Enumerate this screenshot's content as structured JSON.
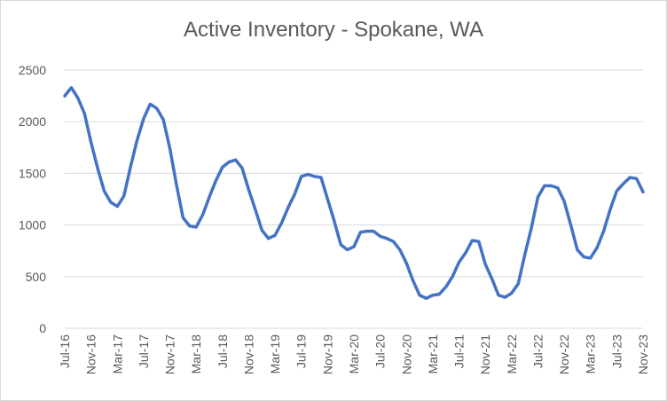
{
  "chart_data": {
    "type": "line",
    "title": "Active Inventory - Spokane, WA",
    "xlabel": "",
    "ylabel": "",
    "ylim": [
      0,
      2500
    ],
    "yticks": [
      0,
      500,
      1000,
      1500,
      2000,
      2500
    ],
    "grid": true,
    "legend": "none",
    "x_tick_labels": [
      "Jul-16",
      "Nov-16",
      "Mar-17",
      "Jul-17",
      "Nov-17",
      "Mar-18",
      "Jul-18",
      "Nov-18",
      "Mar-19",
      "Jul-19",
      "Nov-19",
      "Mar-20",
      "Jul-20",
      "Nov-20",
      "Mar-21",
      "Jul-21",
      "Nov-21",
      "Mar-22",
      "Jul-22",
      "Nov-22",
      "Mar-23",
      "Jul-23",
      "Nov-23"
    ],
    "x": [
      "Jul-16",
      "Aug-16",
      "Sep-16",
      "Oct-16",
      "Nov-16",
      "Dec-16",
      "Jan-17",
      "Feb-17",
      "Mar-17",
      "Apr-17",
      "May-17",
      "Jun-17",
      "Jul-17",
      "Aug-17",
      "Sep-17",
      "Oct-17",
      "Nov-17",
      "Dec-17",
      "Jan-18",
      "Feb-18",
      "Mar-18",
      "Apr-18",
      "May-18",
      "Jun-18",
      "Jul-18",
      "Aug-18",
      "Sep-18",
      "Oct-18",
      "Nov-18",
      "Dec-18",
      "Jan-19",
      "Feb-19",
      "Mar-19",
      "Apr-19",
      "May-19",
      "Jun-19",
      "Jul-19",
      "Aug-19",
      "Sep-19",
      "Oct-19",
      "Nov-19",
      "Dec-19",
      "Jan-20",
      "Feb-20",
      "Mar-20",
      "Apr-20",
      "May-20",
      "Jun-20",
      "Jul-20",
      "Aug-20",
      "Sep-20",
      "Oct-20",
      "Nov-20",
      "Dec-20",
      "Jan-21",
      "Feb-21",
      "Mar-21",
      "Apr-21",
      "May-21",
      "Jun-21",
      "Jul-21",
      "Aug-21",
      "Sep-21",
      "Oct-21",
      "Nov-21",
      "Dec-21",
      "Jan-22",
      "Feb-22",
      "Mar-22",
      "Apr-22",
      "May-22",
      "Jun-22",
      "Jul-22",
      "Aug-22",
      "Sep-22",
      "Oct-22",
      "Nov-22",
      "Dec-22",
      "Jan-23",
      "Feb-23",
      "Mar-23",
      "Apr-23",
      "May-23",
      "Jun-23",
      "Jul-23",
      "Aug-23",
      "Sep-23",
      "Oct-23",
      "Nov-23"
    ],
    "series": [
      {
        "color": "#4472c4",
        "values": [
          2250,
          2330,
          2230,
          2080,
          1800,
          1550,
          1330,
          1220,
          1180,
          1280,
          1560,
          1820,
          2030,
          2170,
          2130,
          2020,
          1740,
          1390,
          1070,
          990,
          980,
          1100,
          1270,
          1430,
          1560,
          1610,
          1630,
          1550,
          1340,
          1150,
          950,
          870,
          900,
          1020,
          1170,
          1300,
          1470,
          1490,
          1470,
          1460,
          1250,
          1040,
          810,
          760,
          790,
          930,
          940,
          940,
          890,
          870,
          840,
          760,
          630,
          460,
          320,
          290,
          320,
          330,
          400,
          500,
          640,
          730,
          850,
          840,
          620,
          480,
          320,
          300,
          340,
          430,
          710,
          970,
          1270,
          1380,
          1380,
          1360,
          1230,
          1000,
          760,
          690,
          680,
          780,
          940,
          1150,
          1330,
          1400,
          1460,
          1450,
          1320
        ]
      }
    ]
  }
}
